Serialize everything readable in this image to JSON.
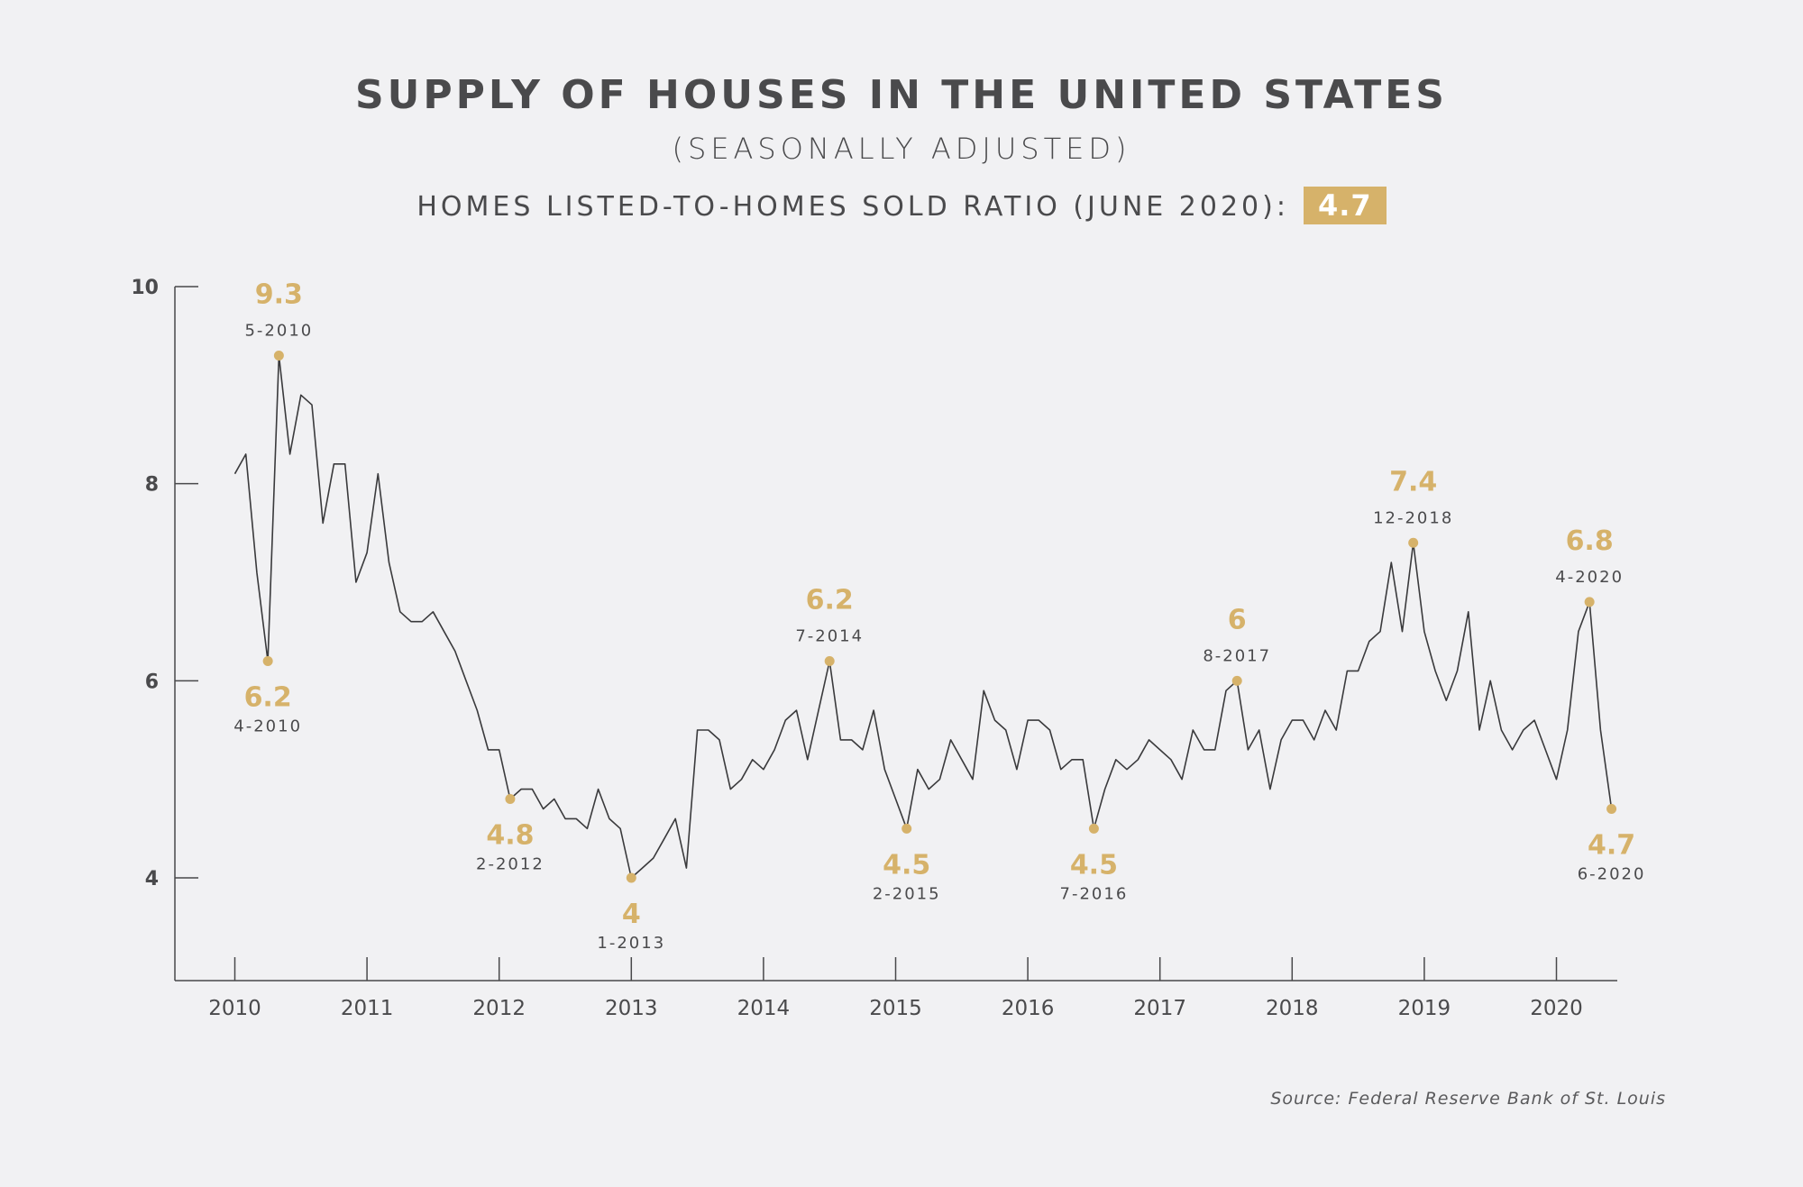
{
  "header": {
    "title": "SUPPLY OF HOUSES IN THE UNITED STATES",
    "subtitle": "(SEASONALLY ADJUSTED)",
    "ratio_label": "HOMES LISTED-TO-HOMES SOLD RATIO (JUNE 2020):",
    "ratio_value": "4.7"
  },
  "source": "Source: Federal Reserve Bank of St. Louis",
  "colors": {
    "background": "#f1f1f3",
    "line": "#3a3a3c",
    "accent": "#d6b26a",
    "text": "#4a4a4c"
  },
  "chart_data": {
    "type": "line",
    "title": "SUPPLY OF HOUSES IN THE UNITED STATES",
    "xlabel": "",
    "ylabel": "",
    "ylim": [
      3,
      10
    ],
    "xlim": [
      "2010-01",
      "2020-06"
    ],
    "grid": false,
    "y_ticks": [
      "4",
      "6",
      "8",
      "10"
    ],
    "x_ticks": [
      "2010",
      "2011",
      "2012",
      "2013",
      "2014",
      "2015",
      "2016",
      "2017",
      "2018",
      "2019",
      "2020"
    ],
    "x_start": "2010-01",
    "frequency": "monthly",
    "values": [
      8.1,
      8.3,
      7.1,
      6.2,
      9.3,
      8.3,
      8.9,
      8.8,
      7.6,
      8.2,
      8.2,
      7.0,
      7.3,
      8.1,
      7.2,
      6.7,
      6.6,
      6.6,
      6.7,
      6.5,
      6.3,
      6.0,
      5.7,
      5.3,
      5.3,
      4.8,
      4.9,
      4.9,
      4.7,
      4.8,
      4.6,
      4.6,
      4.5,
      4.9,
      4.6,
      4.5,
      4.0,
      4.1,
      4.2,
      4.4,
      4.6,
      4.1,
      5.5,
      5.5,
      5.4,
      4.9,
      5.0,
      5.2,
      5.1,
      5.3,
      5.6,
      5.7,
      5.2,
      5.7,
      6.2,
      5.4,
      5.4,
      5.3,
      5.7,
      5.1,
      4.8,
      4.5,
      5.1,
      4.9,
      5.0,
      5.4,
      5.2,
      5.0,
      5.9,
      5.6,
      5.5,
      5.1,
      5.6,
      5.6,
      5.5,
      5.1,
      5.2,
      5.2,
      4.5,
      4.9,
      5.2,
      5.1,
      5.2,
      5.4,
      5.3,
      5.2,
      5.0,
      5.5,
      5.3,
      5.3,
      5.9,
      6.0,
      5.3,
      5.5,
      4.9,
      5.4,
      5.6,
      5.6,
      5.4,
      5.7,
      5.5,
      6.1,
      6.1,
      6.4,
      6.5,
      7.2,
      6.5,
      7.4,
      6.5,
      6.1,
      5.8,
      6.1,
      6.7,
      5.5,
      6.0,
      5.5,
      5.3,
      5.5,
      5.6,
      5.3,
      5.0,
      5.5,
      6.5,
      6.8,
      5.5,
      4.7
    ],
    "annotations": [
      {
        "value": "9.3",
        "date": "5-2010",
        "month_index": 4,
        "placement": "above"
      },
      {
        "value": "6.2",
        "date": "4-2010",
        "month_index": 3,
        "placement": "below"
      },
      {
        "value": "4.8",
        "date": "2-2012",
        "month_index": 25,
        "placement": "below"
      },
      {
        "value": "4",
        "date": "1-2013",
        "month_index": 36,
        "placement": "below"
      },
      {
        "value": "6.2",
        "date": "7-2014",
        "month_index": 54,
        "placement": "above"
      },
      {
        "value": "4.5",
        "date": "2-2015",
        "month_index": 61,
        "placement": "below"
      },
      {
        "value": "4.5",
        "date": "7-2016",
        "month_index": 78,
        "placement": "below"
      },
      {
        "value": "6",
        "date": "8-2017",
        "month_index": 91,
        "placement": "above"
      },
      {
        "value": "7.4",
        "date": "12-2018",
        "month_index": 107,
        "placement": "above"
      },
      {
        "value": "6.8",
        "date": "4-2020",
        "month_index": 123,
        "placement": "above"
      },
      {
        "value": "4.7",
        "date": "6-2020",
        "month_index": 125,
        "placement": "below"
      }
    ]
  }
}
